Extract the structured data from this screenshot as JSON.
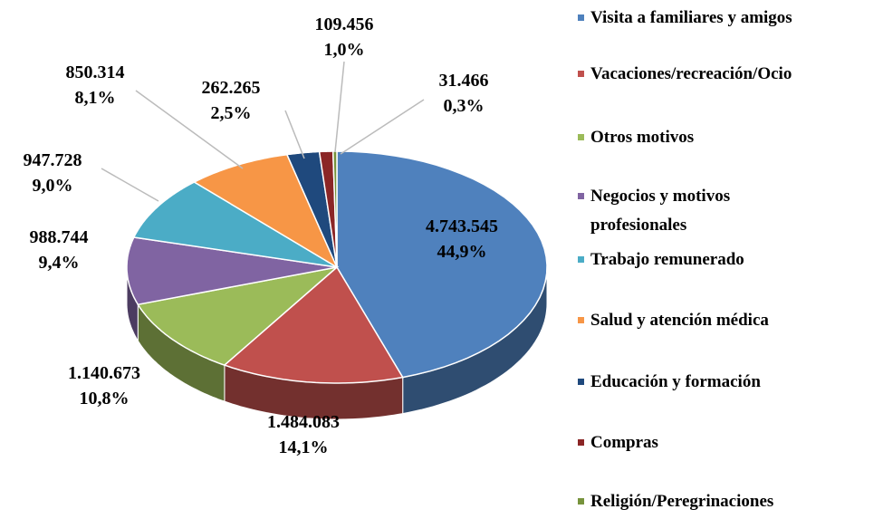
{
  "chart_data": {
    "type": "pie3d",
    "categories": [
      "Visita a familiares y amigos",
      "Vacaciones/recreación/Ocio",
      "Otros motivos",
      "Negocios y motivos profesionales",
      "Trabajo remunerado",
      "Salud y atención médica",
      "Educación y formación",
      "Compras",
      "Religión/Peregrinaciones"
    ],
    "values": [
      4743545,
      1484083,
      1140673,
      988744,
      947728,
      850314,
      262265,
      109456,
      31466
    ],
    "value_labels": [
      "4.743.545",
      "1.484.083",
      "1.140.673",
      "988.744",
      "947.728",
      "850.314",
      "262.265",
      "109.456",
      "31.466"
    ],
    "percentages": [
      44.9,
      14.1,
      10.8,
      9.4,
      9.0,
      8.1,
      2.5,
      1.0,
      0.3
    ],
    "percentage_labels": [
      "44,9%",
      "14,1%",
      "10,8%",
      "9,4%",
      "9,0%",
      "8,1%",
      "2,5%",
      "1,0%",
      "0,3%"
    ],
    "colors": [
      "#4f81bd",
      "#c0504d",
      "#9bbb59",
      "#8064a2",
      "#4bacc6",
      "#f79646",
      "#1f497d",
      "#8b2626",
      "#77933c"
    ],
    "legend": "right"
  }
}
